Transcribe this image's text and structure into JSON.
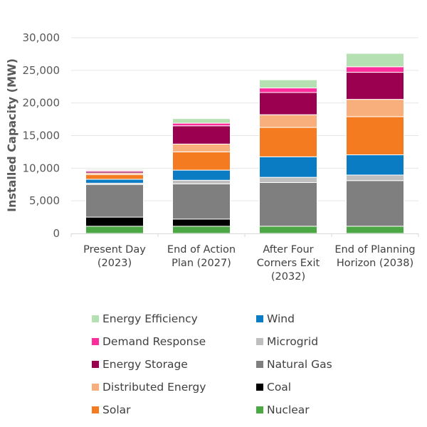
{
  "chart_data": {
    "type": "bar",
    "stacked": true,
    "title": "",
    "xlabel": "",
    "ylabel": "Installed Capacity (MW)",
    "ylim": [
      0,
      30000
    ],
    "yticks": [
      0,
      5000,
      10000,
      15000,
      20000,
      25000,
      30000
    ],
    "ytick_labels": [
      "0",
      "5,000",
      "10,000",
      "15,000",
      "20,000",
      "25,000",
      "30,000"
    ],
    "grid": true,
    "legend_position": "bottom",
    "categories": [
      [
        "Present Day",
        "(2023)"
      ],
      [
        "End of Action",
        "Plan (2027)"
      ],
      [
        "After Four",
        "Corners Exit",
        "(2032)"
      ],
      [
        "End of Planning",
        "Horizon (2038)"
      ]
    ],
    "series": [
      {
        "name": "Nuclear",
        "color": "#4ca844",
        "values": [
          1100,
          1100,
          1100,
          1100
        ]
      },
      {
        "name": "Coal",
        "color": "#000000",
        "values": [
          1400,
          1100,
          0,
          0
        ]
      },
      {
        "name": "Natural Gas",
        "color": "#7f7f7f",
        "values": [
          5000,
          5400,
          6700,
          7000
        ]
      },
      {
        "name": "Microgrid",
        "color": "#bfbfbf",
        "values": [
          200,
          550,
          800,
          850
        ]
      },
      {
        "name": "Wind",
        "color": "#0a7cc4",
        "values": [
          600,
          1550,
          3150,
          3100
        ]
      },
      {
        "name": "Solar",
        "color": "#f47b20",
        "values": [
          700,
          2800,
          4500,
          5850
        ]
      },
      {
        "name": "Distributed Energy",
        "color": "#f8af7c",
        "values": [
          250,
          1200,
          1950,
          2650
        ]
      },
      {
        "name": "Energy Storage",
        "color": "#9b0050",
        "values": [
          250,
          2800,
          3400,
          4150
        ]
      },
      {
        "name": "Demand Response",
        "color": "#ff2c9c",
        "values": [
          150,
          400,
          700,
          850
        ]
      },
      {
        "name": "Energy Efficiency",
        "color": "#b5e0b2",
        "values": [
          150,
          700,
          1250,
          2050
        ]
      }
    ]
  },
  "legend": {
    "left_column": [
      "Energy Efficiency",
      "Demand Response",
      "Energy Storage",
      "Distributed Energy",
      "Solar"
    ],
    "right_column": [
      "Wind",
      "Microgrid",
      "Natural Gas",
      "Coal",
      "Nuclear"
    ]
  }
}
